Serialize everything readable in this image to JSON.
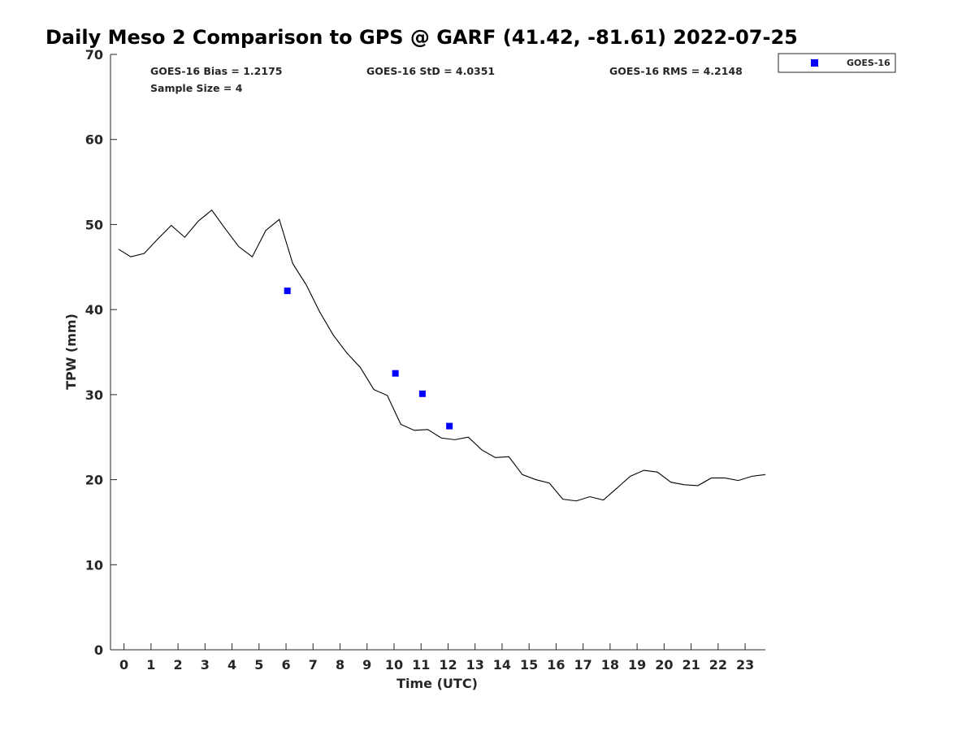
{
  "chart_data": {
    "type": "scatter",
    "title": "Daily Meso 2 Comparison to GPS @ GARF (41.42, -81.61) 2022-07-25",
    "xlabel": "Time (UTC)",
    "ylabel": "TPW (mm)",
    "xlim": [
      -0.5,
      23.75
    ],
    "ylim": [
      0,
      70
    ],
    "x_ticks": [
      0,
      1,
      2,
      3,
      4,
      5,
      6,
      7,
      8,
      9,
      10,
      11,
      12,
      13,
      14,
      15,
      16,
      17,
      18,
      19,
      20,
      21,
      22,
      23
    ],
    "y_ticks": [
      0,
      10,
      20,
      30,
      40,
      50,
      60,
      70
    ],
    "grid": false,
    "legend_position": "top-right outside",
    "stats": {
      "bias": "GOES-16 Bias = 1.2175",
      "std": "GOES-16 StD = 4.0351",
      "rms": "GOES-16 RMS = 4.2148",
      "sample": "Sample Size = 4"
    },
    "series": [
      {
        "name": "GOES-16",
        "style": "scatter",
        "marker": "square",
        "color": "#0000ff",
        "points": [
          {
            "x": 6.05,
            "y": 42.2
          },
          {
            "x": 10.05,
            "y": 32.5
          },
          {
            "x": 11.05,
            "y": 30.1
          },
          {
            "x": 12.05,
            "y": 26.3
          }
        ]
      },
      {
        "style": "line",
        "color": "#000000",
        "points": [
          {
            "x": -0.2,
            "y": 47.1
          },
          {
            "x": 0.25,
            "y": 46.2
          },
          {
            "x": 0.75,
            "y": 46.6
          },
          {
            "x": 1.25,
            "y": 48.3
          },
          {
            "x": 1.75,
            "y": 49.9
          },
          {
            "x": 2.25,
            "y": 48.5
          },
          {
            "x": 2.75,
            "y": 50.4
          },
          {
            "x": 3.25,
            "y": 51.7
          },
          {
            "x": 3.75,
            "y": 49.5
          },
          {
            "x": 4.25,
            "y": 47.4
          },
          {
            "x": 4.75,
            "y": 46.2
          },
          {
            "x": 5.25,
            "y": 49.3
          },
          {
            "x": 5.75,
            "y": 50.6
          },
          {
            "x": 6.25,
            "y": 45.4
          },
          {
            "x": 6.75,
            "y": 42.9
          },
          {
            "x": 7.25,
            "y": 39.7
          },
          {
            "x": 7.75,
            "y": 37.0
          },
          {
            "x": 8.25,
            "y": 34.9
          },
          {
            "x": 8.75,
            "y": 33.2
          },
          {
            "x": 9.25,
            "y": 30.6
          },
          {
            "x": 9.75,
            "y": 29.9
          },
          {
            "x": 10.25,
            "y": 26.5
          },
          {
            "x": 10.75,
            "y": 25.8
          },
          {
            "x": 11.25,
            "y": 25.9
          },
          {
            "x": 11.75,
            "y": 24.9
          },
          {
            "x": 12.25,
            "y": 24.7
          },
          {
            "x": 12.75,
            "y": 25.0
          },
          {
            "x": 13.25,
            "y": 23.5
          },
          {
            "x": 13.75,
            "y": 22.6
          },
          {
            "x": 14.25,
            "y": 22.7
          },
          {
            "x": 14.75,
            "y": 20.6
          },
          {
            "x": 15.25,
            "y": 20.0
          },
          {
            "x": 15.75,
            "y": 19.6
          },
          {
            "x": 16.25,
            "y": 17.7
          },
          {
            "x": 16.75,
            "y": 17.5
          },
          {
            "x": 17.25,
            "y": 18.0
          },
          {
            "x": 17.75,
            "y": 17.6
          },
          {
            "x": 18.25,
            "y": 19.0
          },
          {
            "x": 18.75,
            "y": 20.4
          },
          {
            "x": 19.25,
            "y": 21.1
          },
          {
            "x": 19.75,
            "y": 20.9
          },
          {
            "x": 20.25,
            "y": 19.7
          },
          {
            "x": 20.75,
            "y": 19.4
          },
          {
            "x": 21.25,
            "y": 19.3
          },
          {
            "x": 21.75,
            "y": 20.2
          },
          {
            "x": 22.25,
            "y": 20.2
          },
          {
            "x": 22.75,
            "y": 19.9
          },
          {
            "x": 23.25,
            "y": 20.4
          },
          {
            "x": 23.75,
            "y": 20.6
          }
        ]
      }
    ]
  }
}
